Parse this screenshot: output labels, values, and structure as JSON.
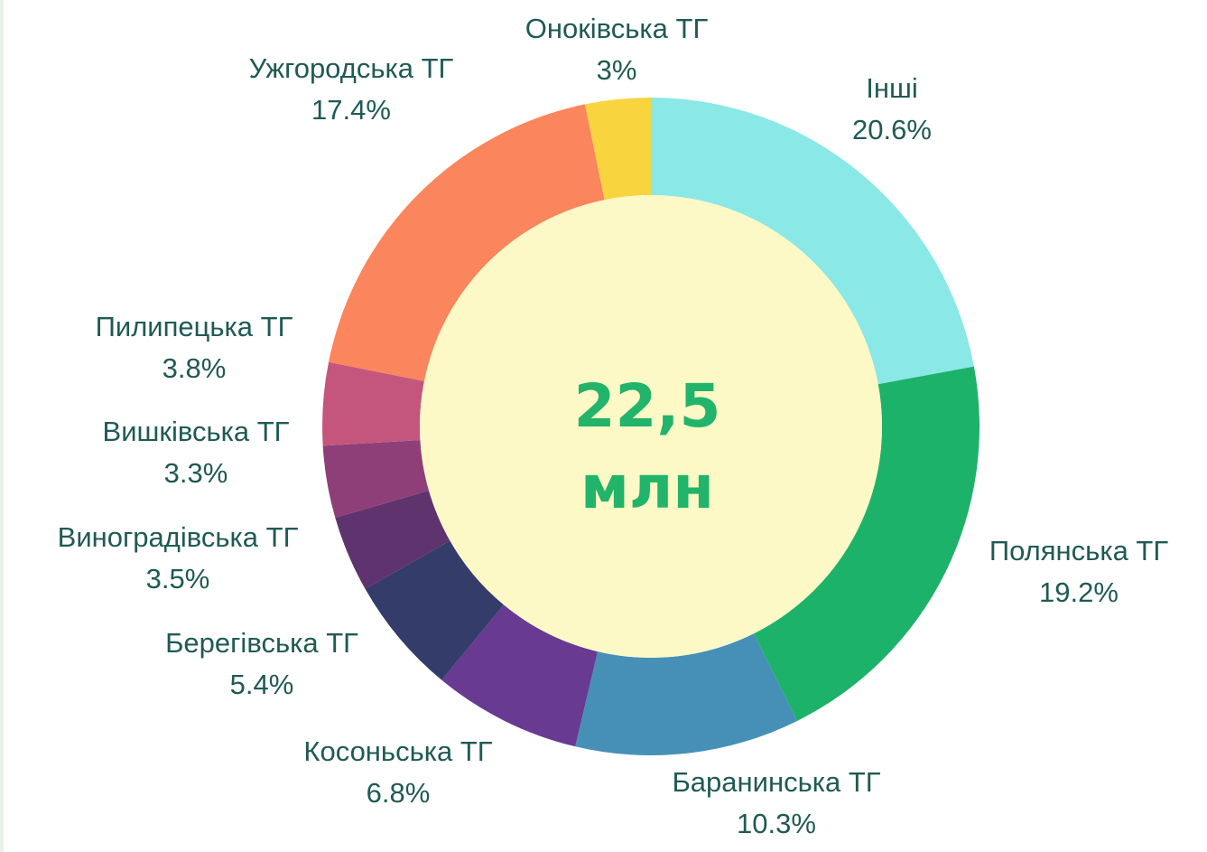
{
  "chart_data": {
    "type": "pie",
    "donut": true,
    "center_label": {
      "value": "22,5",
      "unit": "млн"
    },
    "slices": [
      {
        "name": "Інші",
        "value": 20.6,
        "label": "20.6%",
        "color": "#8ae8e6"
      },
      {
        "name": "Полянська ТГ",
        "value": 19.2,
        "label": "19.2%",
        "color": "#1db26a"
      },
      {
        "name": "Баранинська ТГ",
        "value": 10.3,
        "label": "10.3%",
        "color": "#4690b8"
      },
      {
        "name": "Косоньська ТГ",
        "value": 6.8,
        "label": "6.8%",
        "color": "#683a92"
      },
      {
        "name": "Берегівська ТГ",
        "value": 5.4,
        "label": "5.4%",
        "color": "#343c6a"
      },
      {
        "name": "Виноградівська ТГ",
        "value": 3.5,
        "label": "3.5%",
        "color": "#5e336e"
      },
      {
        "name": "Вишківська ТГ",
        "value": 3.3,
        "label": "3.3%",
        "color": "#8e3f78"
      },
      {
        "name": "Пилипецька ТГ",
        "value": 3.8,
        "label": "3.8%",
        "color": "#c4567e"
      },
      {
        "name": "Ужгородська ТГ",
        "value": 17.4,
        "label": "17.4%",
        "color": "#f06a7b"
      },
      {
        "name": "Онoківська ТГ",
        "value": 3.0,
        "label": "3%",
        "color": "#fb855c"
      }
    ],
    "hole_color": "#fdf9c6"
  }
}
